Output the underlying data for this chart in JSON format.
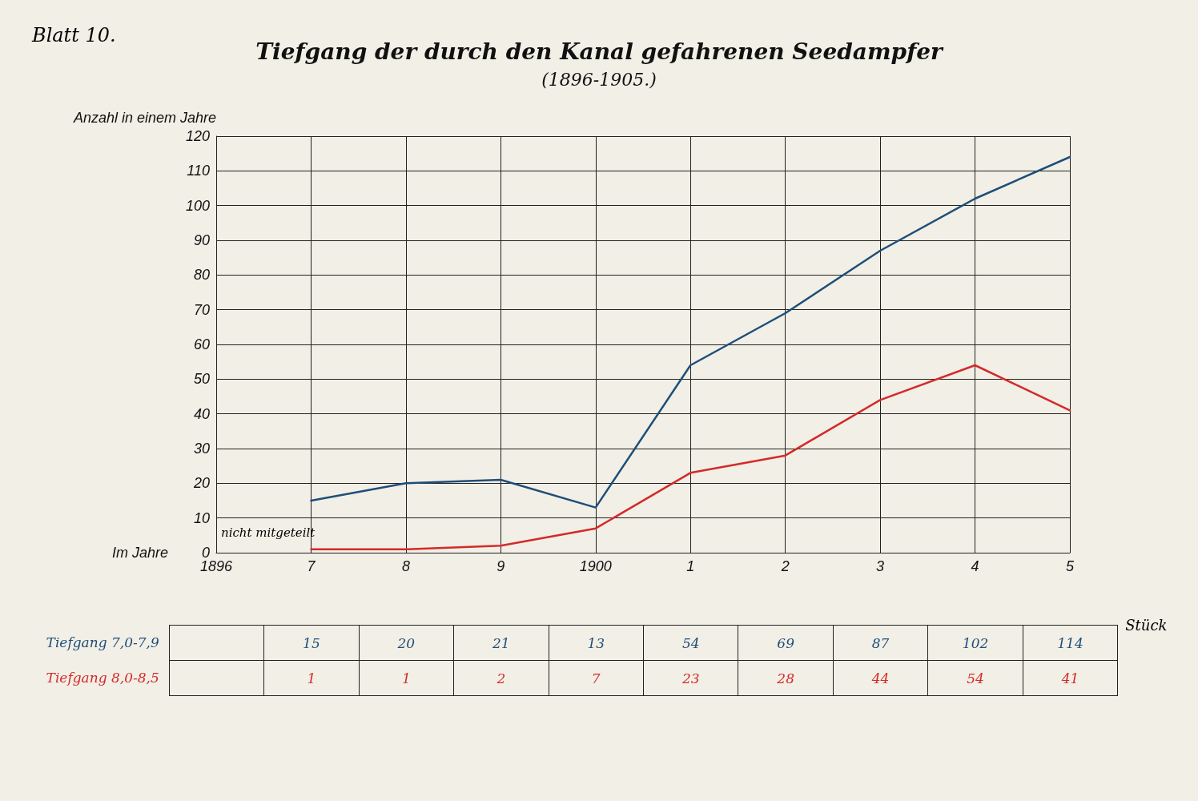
{
  "chart_data": {
    "type": "line",
    "title": "Tiefgang der durch den Kanal gefahrenen Seedampfer",
    "subtitle": "(1896-1905.)",
    "xlabel": "Im Jahre",
    "ylabel": "Anzahl in einem Jahre",
    "categories": [
      "1896",
      "7",
      "8",
      "9",
      "1900",
      "1",
      "2",
      "3",
      "4",
      "5"
    ],
    "series": [
      {
        "name": "Tiefgang 7,0-7,9",
        "color": "#1f4e79",
        "values": [
          null,
          15,
          20,
          21,
          13,
          54,
          69,
          87,
          102,
          114
        ]
      },
      {
        "name": "Tiefgang 8,0-8,5",
        "color": "#d42a2a",
        "values": [
          null,
          1,
          1,
          2,
          7,
          23,
          28,
          44,
          54,
          41
        ]
      }
    ],
    "ylim": [
      0,
      120
    ],
    "yticks": [
      0,
      10,
      20,
      30,
      40,
      50,
      60,
      70,
      80,
      90,
      100,
      110,
      120
    ],
    "grid": true,
    "legend": false,
    "marker": "none",
    "line_style": "solid",
    "data_labels": true,
    "annotations": [
      "Blatt 10.",
      "nicht mitgeteilt",
      "Stück"
    ]
  }
}
